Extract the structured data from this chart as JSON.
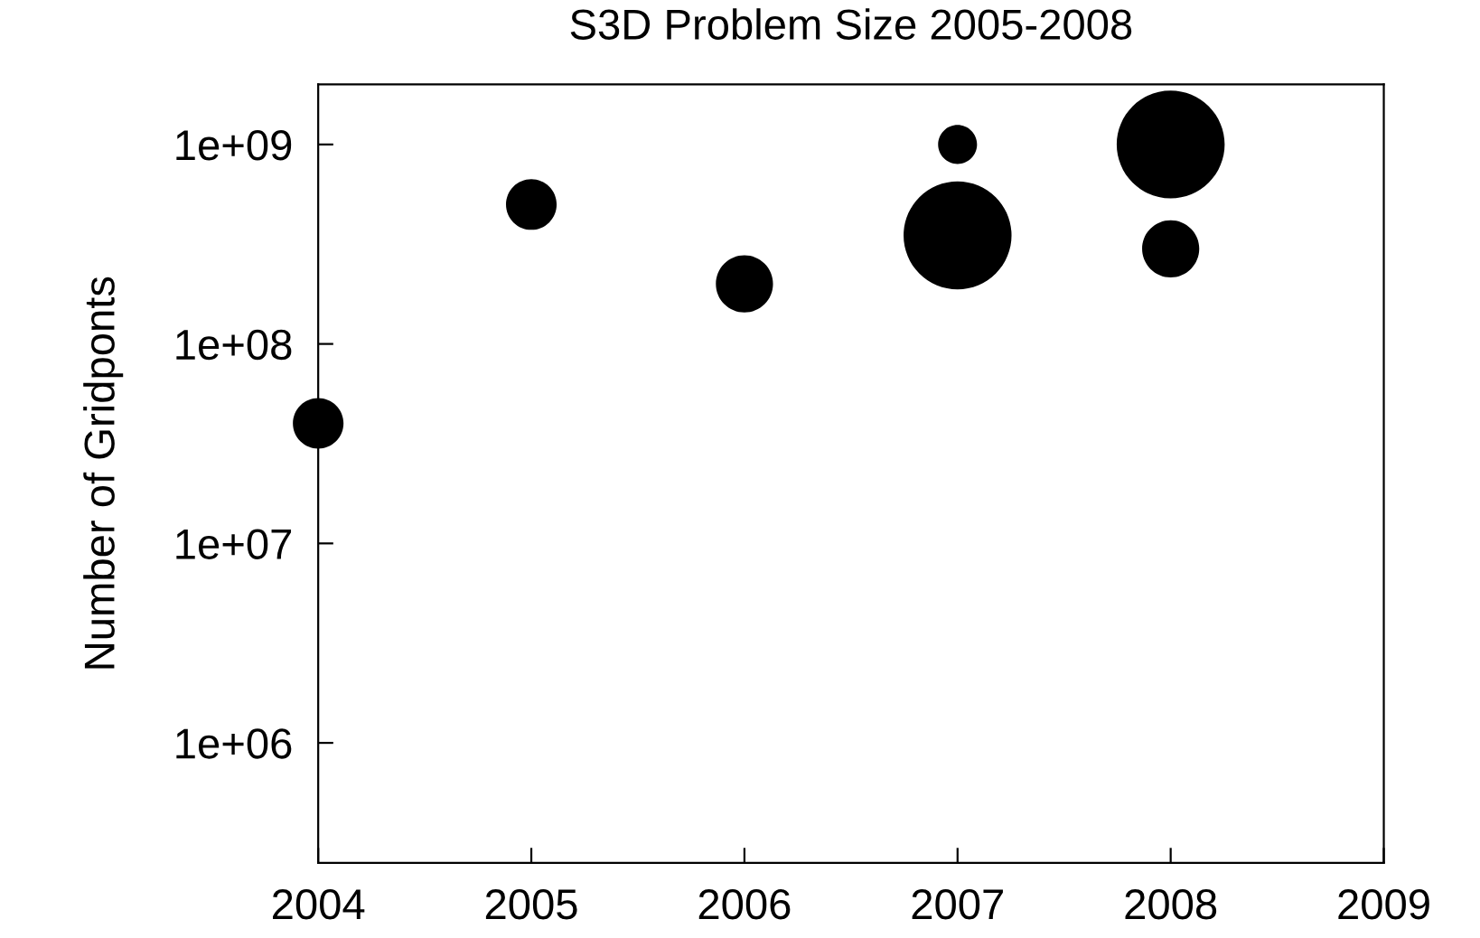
{
  "chart_data": {
    "type": "bubble",
    "title": "S3D Problem Size 2005-2008",
    "ylabel": "Number of Gridponts",
    "x": [
      2004,
      2005,
      2006,
      2007,
      2007,
      2008,
      2008
    ],
    "values": [
      40000000.0,
      500000000.0,
      200000000.0,
      1000000000.0,
      350000000.0,
      1000000000.0,
      300000000.0
    ],
    "sizes": [
      0.22,
      0.22,
      0.28,
      0.13,
      1,
      1,
      0.28
    ],
    "color": "#000000",
    "log": "y",
    "xlim": [
      2004,
      2009
    ],
    "xticks": [
      2004,
      2005,
      2006,
      2007,
      2008,
      2009
    ],
    "ylim": [
      250000,
      2000000000
    ],
    "yticks": [
      {
        "value": 1000000,
        "label": "1e+06"
      },
      {
        "value": 10000000,
        "label": "1e+07"
      },
      {
        "value": 100000000,
        "label": "1e+08"
      },
      {
        "value": 1000000000,
        "label": "1e+09"
      }
    ],
    "grid": false,
    "legend": false
  }
}
